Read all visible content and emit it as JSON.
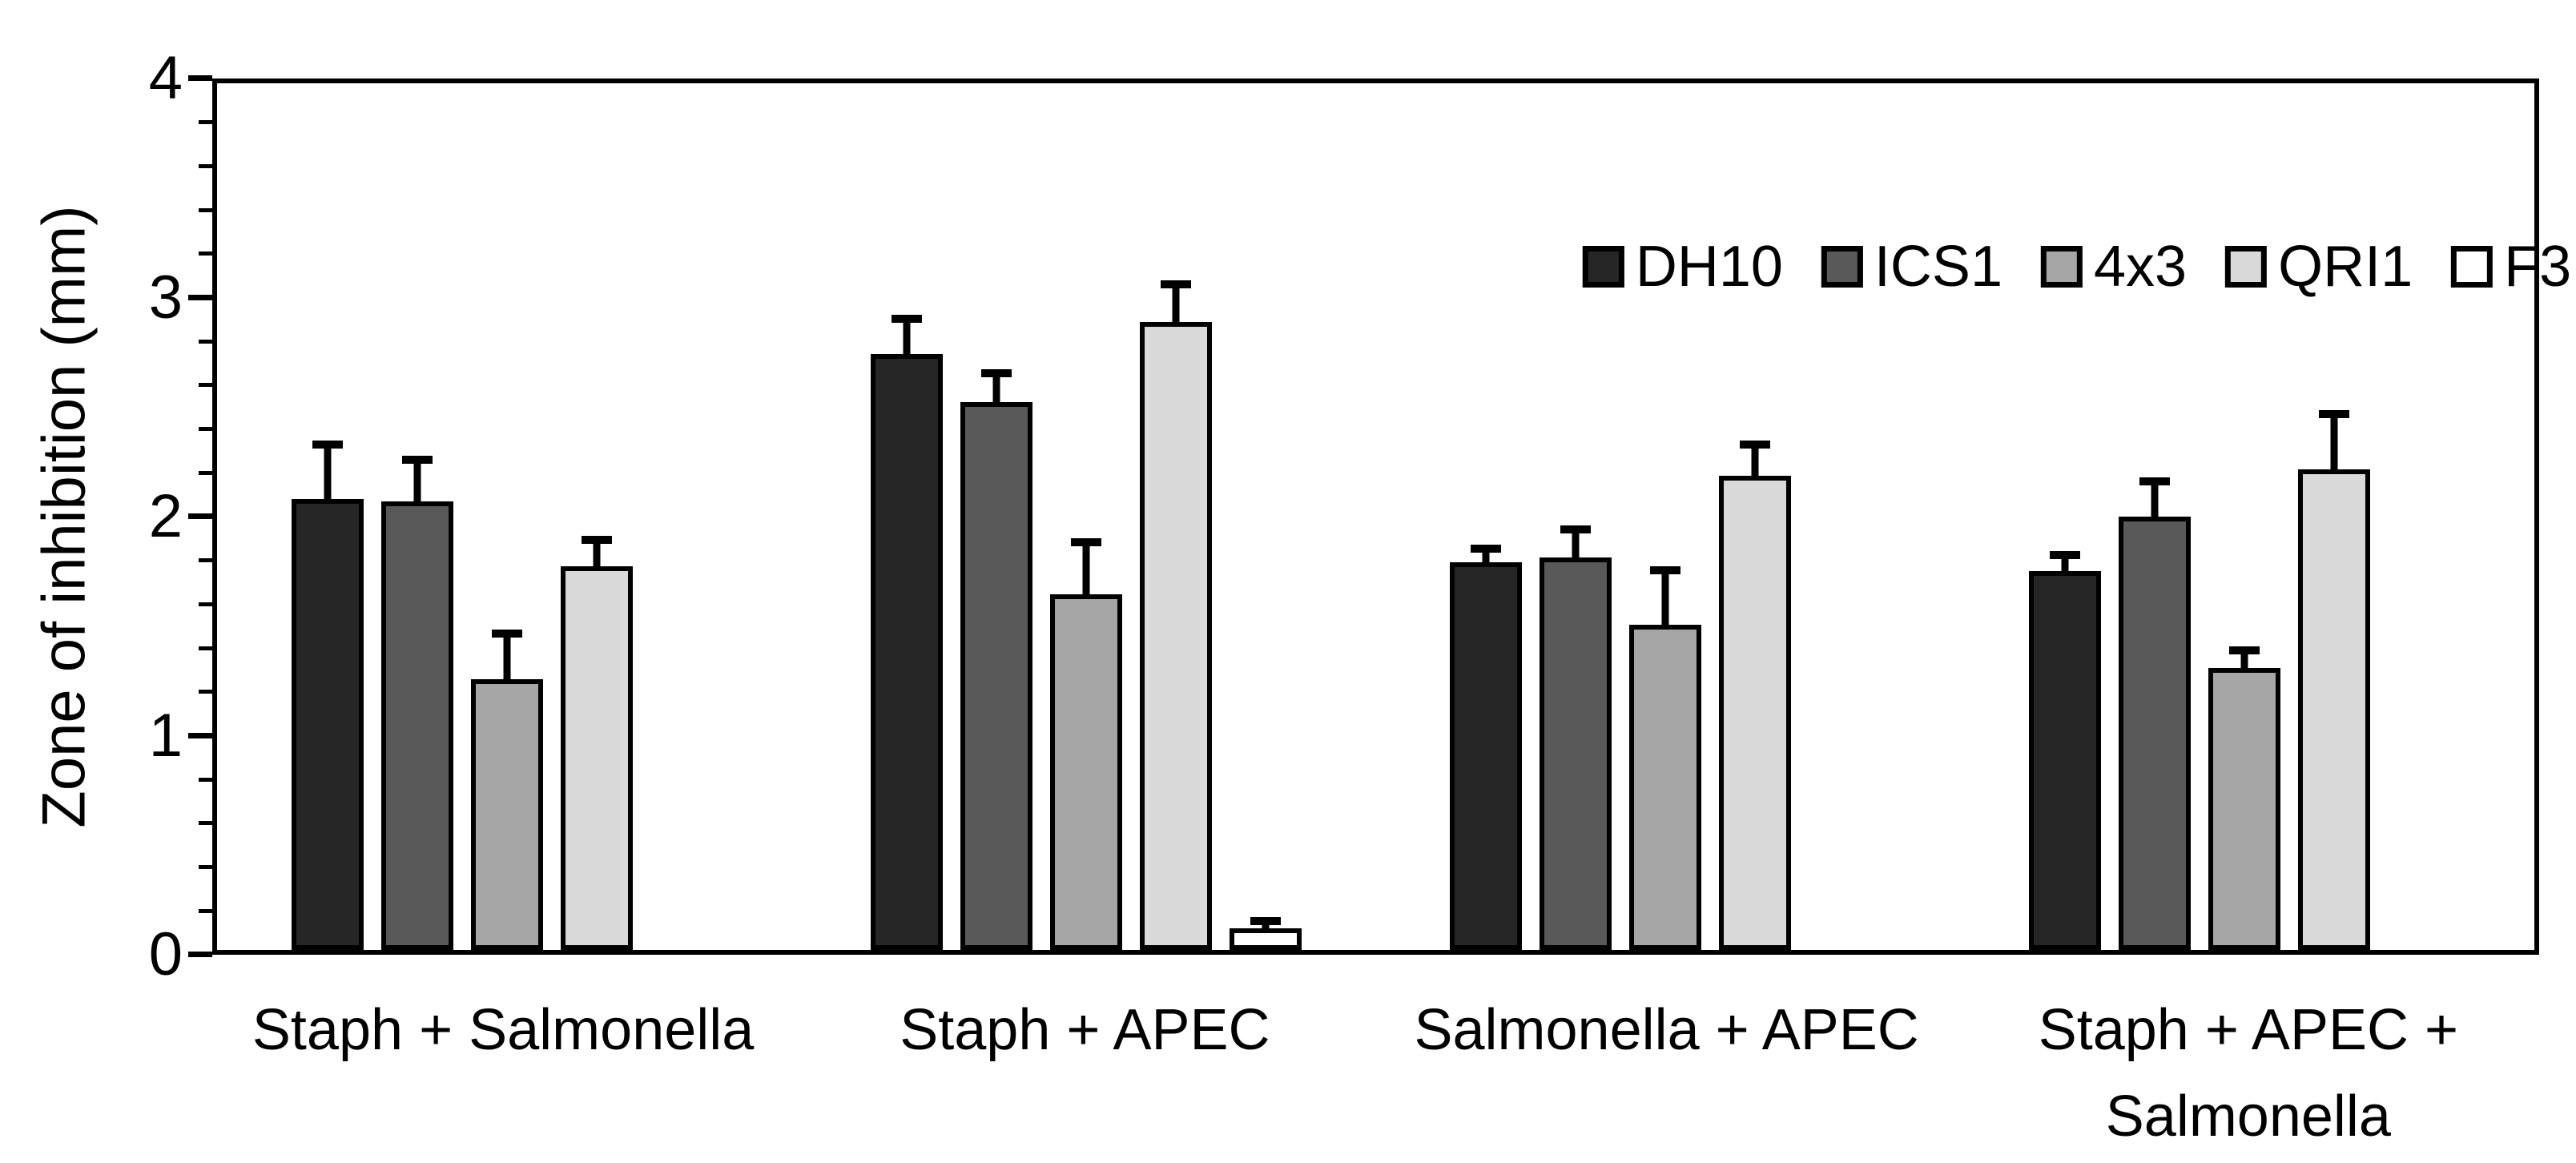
{
  "chart_data": {
    "type": "bar",
    "title": "",
    "xlabel": "",
    "ylabel": "Zone of inhibition (mm)",
    "ylim": [
      0,
      4
    ],
    "yticks": [
      "0",
      "1",
      "2",
      "3",
      "4"
    ],
    "minor_tick_step": 0.2,
    "grid": false,
    "legend_position": "top-right-inside",
    "error_bars": "upper-only",
    "categories": [
      "Staph + Salmonella",
      "Staph + APEC",
      "Salmonella + APEC",
      "Staph + APEC + Salmonella"
    ],
    "series": [
      {
        "name": "DH10",
        "color": "#262626",
        "values": [
          2.08,
          2.75,
          1.79,
          1.75
        ],
        "errors": [
          0.27,
          0.18,
          0.08,
          0.09
        ]
      },
      {
        "name": "ICS1",
        "color": "#595959",
        "values": [
          2.07,
          2.53,
          1.81,
          2.0
        ],
        "errors": [
          0.21,
          0.15,
          0.15,
          0.18
        ]
      },
      {
        "name": "4x3",
        "color": "#a6a6a6",
        "values": [
          1.25,
          1.64,
          1.5,
          1.3
        ],
        "errors": [
          0.23,
          0.26,
          0.27,
          0.1
        ]
      },
      {
        "name": "QRI1",
        "color": "#d9d9d9",
        "values": [
          1.77,
          2.9,
          2.19,
          2.22
        ],
        "errors": [
          0.14,
          0.19,
          0.16,
          0.27
        ]
      },
      {
        "name": "F3",
        "color": "#ffffff",
        "values": [
          0,
          0.1,
          0,
          0
        ],
        "errors": [
          0,
          0.05,
          0,
          0
        ]
      }
    ],
    "axis_color": "#000000"
  }
}
